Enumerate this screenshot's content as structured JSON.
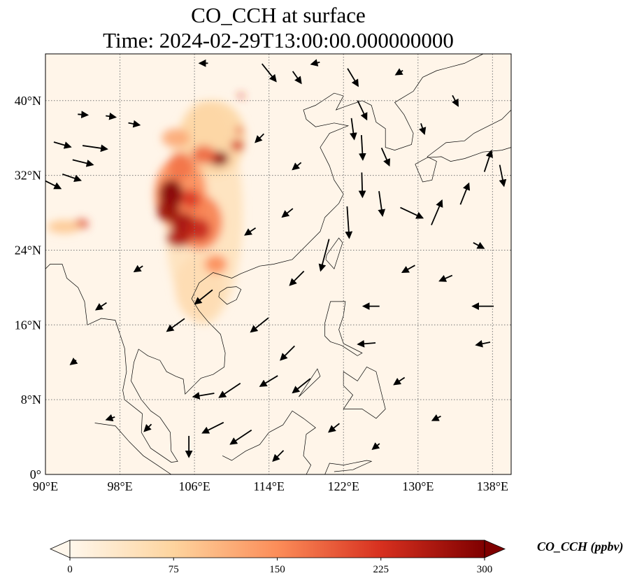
{
  "chart_data": {
    "type": "heatmap",
    "title": "CO_CCH at surface",
    "subtitle": "Time: 2024-02-29T13:00:00.000000000",
    "xlim": [
      90,
      140
    ],
    "ylim": [
      0,
      45
    ],
    "x_ticks": [
      90,
      98,
      106,
      114,
      122,
      130,
      138
    ],
    "x_tick_labels": [
      "90°E",
      "98°E",
      "106°E",
      "114°E",
      "122°E",
      "130°E",
      "138°E"
    ],
    "y_ticks": [
      0,
      8,
      16,
      24,
      32,
      40
    ],
    "y_tick_labels": [
      "0°",
      "8°N",
      "16°N",
      "24°N",
      "32°N",
      "40°N"
    ],
    "grid": true,
    "colorbar": {
      "label": "CO_CCH (ppbv)",
      "range": [
        0,
        300
      ],
      "ticks": [
        0,
        75,
        150,
        225,
        300
      ],
      "tick_labels": [
        "0",
        "75",
        "150",
        "225",
        "300"
      ],
      "extend": "both",
      "colors": [
        "#fff7ec",
        "#fdd49e",
        "#fc8d59",
        "#d7301f",
        "#7f0000"
      ]
    },
    "background_value": 5,
    "concentration_blobs": [
      {
        "lon": 107,
        "lat": 28,
        "value": 45,
        "rlon": 4.2,
        "rlat": 12
      },
      {
        "lon": 106.5,
        "lat": 20,
        "value": 55,
        "rlon": 2.6,
        "rlat": 3.5
      },
      {
        "lon": 108,
        "lat": 36,
        "value": 70,
        "rlon": 3.5,
        "rlat": 4
      },
      {
        "lon": 104.5,
        "lat": 30,
        "value": 150,
        "rlon": 2.8,
        "rlat": 4
      },
      {
        "lon": 106.5,
        "lat": 27,
        "value": 160,
        "rlon": 2.5,
        "rlat": 3
      },
      {
        "lon": 103.5,
        "lat": 30,
        "value": 300,
        "rlon": 1.3,
        "rlat": 1.6
      },
      {
        "lon": 103.2,
        "lat": 28.3,
        "value": 280,
        "rlon": 1.2,
        "rlat": 1.3
      },
      {
        "lon": 104.8,
        "lat": 26.8,
        "value": 270,
        "rlon": 1.3,
        "rlat": 1.2
      },
      {
        "lon": 104.3,
        "lat": 25.3,
        "value": 260,
        "rlon": 1.3,
        "rlat": 1
      },
      {
        "lon": 106.5,
        "lat": 26.2,
        "value": 240,
        "rlon": 1.2,
        "rlat": 1.2
      },
      {
        "lon": 105.6,
        "lat": 29.5,
        "value": 220,
        "rlon": 1.0,
        "rlat": 1.0
      },
      {
        "lon": 108.6,
        "lat": 33.8,
        "value": 290,
        "rlon": 1.1,
        "rlat": 0.8
      },
      {
        "lon": 107,
        "lat": 34.2,
        "value": 180,
        "rlon": 1.3,
        "rlat": 1.0
      },
      {
        "lon": 110.6,
        "lat": 35.2,
        "value": 230,
        "rlon": 0.7,
        "rlat": 0.6
      },
      {
        "lon": 104.5,
        "lat": 33,
        "value": 170,
        "rlon": 1.3,
        "rlat": 1.5
      },
      {
        "lon": 104,
        "lat": 36,
        "value": 120,
        "rlon": 1.5,
        "rlat": 1
      },
      {
        "lon": 108.3,
        "lat": 22.5,
        "value": 150,
        "rlon": 1.2,
        "rlat": 1
      },
      {
        "lon": 93.8,
        "lat": 26.8,
        "value": 210,
        "rlon": 0.8,
        "rlat": 0.5
      },
      {
        "lon": 92,
        "lat": 26.5,
        "value": 90,
        "rlon": 1.8,
        "rlat": 0.7
      },
      {
        "lon": 111,
        "lat": 40.5,
        "value": 220,
        "rlon": 0.3,
        "rlat": 0.3
      },
      {
        "lon": 110.8,
        "lat": 36.8,
        "value": 200,
        "rlon": 0.4,
        "rlat": 0.4
      }
    ],
    "wind_vectors": [
      {
        "lon": 91.8,
        "lat": 35.3,
        "u": 24,
        "v": -7
      },
      {
        "lon": 95.3,
        "lat": 35,
        "u": 35,
        "v": -5
      },
      {
        "lon": 94,
        "lat": 33.4,
        "u": 29,
        "v": -7
      },
      {
        "lon": 90.8,
        "lat": 31,
        "u": 22,
        "v": -11
      },
      {
        "lon": 92.8,
        "lat": 31.8,
        "u": 26,
        "v": -9
      },
      {
        "lon": 94,
        "lat": 38.5,
        "u": 14,
        "v": -1
      },
      {
        "lon": 97,
        "lat": 38.3,
        "u": 14,
        "v": -2
      },
      {
        "lon": 99.5,
        "lat": 37.5,
        "u": 16,
        "v": -3
      },
      {
        "lon": 114,
        "lat": 43,
        "u": 20,
        "v": -25
      },
      {
        "lon": 117,
        "lat": 42.5,
        "u": 12,
        "v": -17
      },
      {
        "lon": 123,
        "lat": 42.5,
        "u": 15,
        "v": -25
      },
      {
        "lon": 124,
        "lat": 39,
        "u": 13,
        "v": -27
      },
      {
        "lon": 123,
        "lat": 37,
        "u": 4,
        "v": -30
      },
      {
        "lon": 124,
        "lat": 35,
        "u": 2,
        "v": -35
      },
      {
        "lon": 124,
        "lat": 31,
        "u": 1,
        "v": -35
      },
      {
        "lon": 126,
        "lat": 29,
        "u": 5,
        "v": -35
      },
      {
        "lon": 122.5,
        "lat": 27,
        "u": 3,
        "v": -45
      },
      {
        "lon": 120,
        "lat": 23.5,
        "u": -12,
        "v": -45
      },
      {
        "lon": 126.5,
        "lat": 34,
        "u": 11,
        "v": -25
      },
      {
        "lon": 129.3,
        "lat": 28,
        "u": 32,
        "v": -15
      },
      {
        "lon": 132,
        "lat": 28,
        "u": 15,
        "v": 35
      },
      {
        "lon": 135,
        "lat": 30,
        "u": 12,
        "v": 30
      },
      {
        "lon": 137.5,
        "lat": 33.5,
        "u": 10,
        "v": 30
      },
      {
        "lon": 139,
        "lat": 32,
        "u": 6,
        "v": -30
      },
      {
        "lon": 136.5,
        "lat": 24.5,
        "u": 15,
        "v": -8
      },
      {
        "lon": 125,
        "lat": 18,
        "u": -23,
        "v": 0
      },
      {
        "lon": 137,
        "lat": 18,
        "u": -30,
        "v": 0
      },
      {
        "lon": 137,
        "lat": 14,
        "u": -20,
        "v": -4
      },
      {
        "lon": 124.5,
        "lat": 14,
        "u": -25,
        "v": -2
      },
      {
        "lon": 116,
        "lat": 13,
        "u": -20,
        "v": -20
      },
      {
        "lon": 114,
        "lat": 10,
        "u": -25,
        "v": -15
      },
      {
        "lon": 109.8,
        "lat": 9,
        "u": -30,
        "v": -20
      },
      {
        "lon": 107,
        "lat": 8.5,
        "u": -30,
        "v": -5
      },
      {
        "lon": 108,
        "lat": 5,
        "u": -30,
        "v": -15
      },
      {
        "lon": 111,
        "lat": 4,
        "u": -30,
        "v": -20
      },
      {
        "lon": 104,
        "lat": 16,
        "u": -25,
        "v": -18
      },
      {
        "lon": 107,
        "lat": 19,
        "u": -25,
        "v": -20
      },
      {
        "lon": 117,
        "lat": 21,
        "u": -20,
        "v": -20
      },
      {
        "lon": 113,
        "lat": 16,
        "u": -25,
        "v": -20
      },
      {
        "lon": 117.5,
        "lat": 9.5,
        "u": -25,
        "v": -20
      },
      {
        "lon": 105.4,
        "lat": 3,
        "u": 0,
        "v": -30
      },
      {
        "lon": 101,
        "lat": 5,
        "u": -10,
        "v": -10
      },
      {
        "lon": 96,
        "lat": 18,
        "u": -15,
        "v": -10
      },
      {
        "lon": 100,
        "lat": 22,
        "u": -12,
        "v": -8
      },
      {
        "lon": 93,
        "lat": 12,
        "u": -8,
        "v": -6
      },
      {
        "lon": 97,
        "lat": 6,
        "u": -12,
        "v": -4
      },
      {
        "lon": 112,
        "lat": 26,
        "u": -15,
        "v": -10
      },
      {
        "lon": 116,
        "lat": 28,
        "u": -15,
        "v": -12
      },
      {
        "lon": 117,
        "lat": 33,
        "u": -12,
        "v": -10
      },
      {
        "lon": 113,
        "lat": 36,
        "u": -12,
        "v": -12
      },
      {
        "lon": 129,
        "lat": 22,
        "u": -18,
        "v": -10
      },
      {
        "lon": 133,
        "lat": 21,
        "u": -18,
        "v": -8
      },
      {
        "lon": 128,
        "lat": 10,
        "u": -15,
        "v": -10
      },
      {
        "lon": 132,
        "lat": 6,
        "u": -12,
        "v": -6
      },
      {
        "lon": 121,
        "lat": 5,
        "u": -15,
        "v": -12
      },
      {
        "lon": 125.5,
        "lat": 3,
        "u": -10,
        "v": -8
      },
      {
        "lon": 115,
        "lat": 2,
        "u": -15,
        "v": -15
      },
      {
        "lon": 130.5,
        "lat": 37,
        "u": 5,
        "v": -15
      },
      {
        "lon": 134,
        "lat": 40,
        "u": 8,
        "v": -15
      },
      {
        "lon": 128,
        "lat": 43,
        "u": -10,
        "v": -6
      },
      {
        "lon": 119,
        "lat": 44,
        "u": -12,
        "v": -3
      },
      {
        "lon": 107,
        "lat": 44,
        "u": -12,
        "v": 0
      }
    ],
    "coastlines": [
      [
        [
          90,
          22
        ],
        [
          90.5,
          22.5
        ],
        [
          91.8,
          22.5
        ],
        [
          92.3,
          21
        ],
        [
          93.5,
          20
        ],
        [
          94.2,
          18.5
        ],
        [
          94.5,
          16
        ],
        [
          96,
          16.7
        ],
        [
          97.5,
          16.5
        ],
        [
          98.5,
          13.5
        ],
        [
          98.7,
          11
        ],
        [
          98.3,
          9
        ],
        [
          98.5,
          8
        ],
        [
          100.4,
          6.5
        ],
        [
          100.3,
          4.5
        ],
        [
          101.3,
          2.8
        ],
        [
          103.5,
          1.3
        ],
        [
          104.2,
          1.4
        ],
        [
          103.5,
          2.5
        ],
        [
          103.4,
          4.5
        ],
        [
          102.3,
          6.1
        ],
        [
          101.3,
          6.8
        ],
        [
          100.3,
          8
        ],
        [
          99.2,
          10
        ],
        [
          99.5,
          12
        ],
        [
          100,
          13.4
        ],
        [
          101,
          12.7
        ],
        [
          102.3,
          12.2
        ],
        [
          103,
          11
        ],
        [
          104,
          10.5
        ],
        [
          104.8,
          10.2
        ],
        [
          105,
          8.6
        ],
        [
          106.7,
          10.3
        ],
        [
          108,
          10.7
        ],
        [
          109.2,
          11.5
        ],
        [
          109.3,
          13
        ],
        [
          108.8,
          15
        ],
        [
          107.5,
          16.3
        ],
        [
          106.5,
          17.5
        ],
        [
          105.7,
          18.8
        ],
        [
          106.5,
          20.5
        ],
        [
          108,
          21.6
        ],
        [
          110,
          21
        ],
        [
          111,
          21.5
        ],
        [
          113,
          22.3
        ],
        [
          114.5,
          22.5
        ],
        [
          116.5,
          23
        ],
        [
          118,
          24.5
        ],
        [
          119.5,
          26
        ],
        [
          120,
          27.5
        ],
        [
          121.5,
          29
        ],
        [
          122,
          30
        ],
        [
          121,
          31.5
        ],
        [
          120.5,
          33
        ],
        [
          119.5,
          35
        ],
        [
          120.5,
          36.5
        ],
        [
          122.5,
          37.3
        ],
        [
          121,
          37.6
        ],
        [
          119,
          37.2
        ],
        [
          118,
          38
        ],
        [
          117.7,
          39
        ],
        [
          119,
          39.5
        ],
        [
          121,
          40.8
        ],
        [
          122,
          40.5
        ],
        [
          121.2,
          39
        ],
        [
          122,
          39.3
        ],
        [
          124,
          40
        ],
        [
          125,
          39.5
        ],
        [
          125.5,
          37.7
        ],
        [
          126.5,
          37
        ],
        [
          126.5,
          35
        ],
        [
          127.5,
          34.7
        ],
        [
          129.3,
          35.3
        ],
        [
          129.5,
          36.5
        ],
        [
          128.5,
          38.5
        ],
        [
          127.5,
          39.8
        ],
        [
          129.5,
          41
        ],
        [
          130.5,
          42.5
        ],
        [
          132,
          43.2
        ],
        [
          135,
          44
        ],
        [
          137,
          45
        ]
      ],
      [
        [
          120.1,
          23
        ],
        [
          121,
          22
        ],
        [
          121.9,
          24.8
        ],
        [
          121.5,
          25.3
        ],
        [
          120.2,
          23.5
        ],
        [
          120.1,
          23
        ]
      ],
      [
        [
          108.6,
          19
        ],
        [
          109.5,
          18.2
        ],
        [
          110.5,
          18.7
        ],
        [
          111,
          19.8
        ],
        [
          110.5,
          20.1
        ],
        [
          109.5,
          20
        ],
        [
          108.7,
          19.5
        ],
        [
          108.6,
          19
        ]
      ],
      [
        [
          120,
          16.2
        ],
        [
          120.6,
          18.5
        ],
        [
          122.2,
          18.5
        ],
        [
          122,
          17
        ],
        [
          121.5,
          15.5
        ],
        [
          122,
          14
        ],
        [
          124,
          13
        ],
        [
          123.5,
          12.7
        ],
        [
          121.8,
          13.8
        ],
        [
          120.6,
          14.2
        ],
        [
          120,
          14.8
        ],
        [
          120,
          16.2
        ]
      ],
      [
        [
          122,
          11
        ],
        [
          123.5,
          10
        ],
        [
          124.5,
          11.5
        ],
        [
          125.5,
          11
        ],
        [
          126,
          9
        ],
        [
          126.5,
          7
        ],
        [
          125.5,
          6
        ],
        [
          124,
          7
        ],
        [
          122,
          7
        ],
        [
          123,
          8.5
        ],
        [
          122,
          9.5
        ],
        [
          122,
          11
        ]
      ],
      [
        [
          117.2,
          8.3
        ],
        [
          119.5,
          10.5
        ],
        [
          119.2,
          11.3
        ],
        [
          117.2,
          8.3
        ]
      ],
      [
        [
          129.7,
          33.2
        ],
        [
          130.5,
          31.3
        ],
        [
          131.5,
          31.5
        ],
        [
          132,
          33.5
        ],
        [
          131,
          34
        ],
        [
          133,
          35.5
        ],
        [
          135,
          35.7
        ],
        [
          136,
          36.5
        ],
        [
          137,
          37
        ],
        [
          139,
          38
        ],
        [
          140,
          39
        ],
        [
          140,
          35
        ],
        [
          139,
          34.7
        ],
        [
          137,
          34.5
        ],
        [
          135,
          33.8
        ],
        [
          133.5,
          33.5
        ],
        [
          132.5,
          34
        ],
        [
          131,
          33.9
        ],
        [
          129.7,
          33.2
        ]
      ],
      [
        [
          109,
          2
        ],
        [
          110,
          1.5
        ],
        [
          111.5,
          2.5
        ],
        [
          113,
          3.2
        ],
        [
          114,
          4.5
        ],
        [
          115.5,
          5.3
        ],
        [
          116.5,
          6.8
        ],
        [
          117.7,
          6
        ],
        [
          119,
          5
        ],
        [
          118,
          4.3
        ],
        [
          117.7,
          2
        ],
        [
          118.5,
          1
        ],
        [
          118,
          0
        ]
      ],
      [
        [
          95.3,
          5.5
        ],
        [
          97.5,
          5.2
        ],
        [
          99,
          3.5
        ],
        [
          100.5,
          2
        ],
        [
          102,
          1
        ],
        [
          103.5,
          0
        ]
      ],
      [
        [
          120,
          0
        ],
        [
          120.5,
          1.2
        ],
        [
          122,
          1
        ],
        [
          124.5,
          1.5
        ],
        [
          125,
          1.4
        ],
        [
          123,
          0.5
        ],
        [
          121,
          0.3
        ]
      ],
      [
        [
          131,
          -0.5
        ],
        [
          132,
          0
        ],
        [
          134,
          0
        ]
      ]
    ]
  }
}
